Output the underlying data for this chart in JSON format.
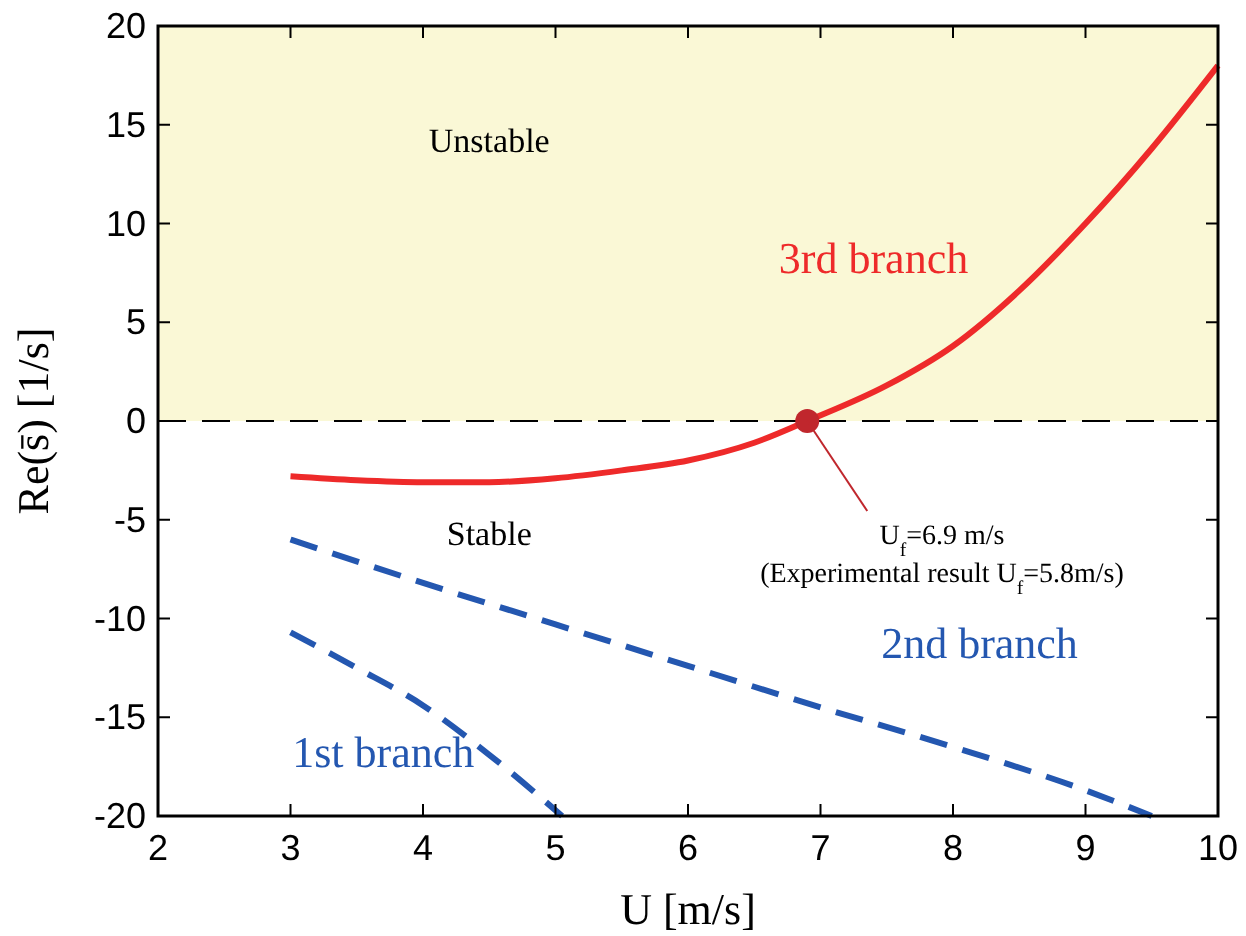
{
  "chart_data": {
    "type": "line",
    "xlabel": "U [m/s]",
    "ylabel": "Re(s̄) [1/s]",
    "xlim": [
      2,
      10
    ],
    "ylim": [
      -20,
      20
    ],
    "xticks": [
      2,
      3,
      4,
      5,
      6,
      7,
      8,
      9,
      10
    ],
    "yticks": [
      -20,
      -15,
      -10,
      -5,
      0,
      5,
      10,
      15,
      20
    ],
    "grid": false,
    "line_style": "solid",
    "marker": "none",
    "series": [
      {
        "name": "1st branch",
        "color": "#2457b0",
        "line_style": "dashed",
        "x": [
          3,
          3.5,
          4,
          4.5,
          5.05
        ],
        "values": [
          -10.7,
          -12.5,
          -14.4,
          -16.9,
          -20
        ]
      },
      {
        "name": "2nd branch",
        "color": "#2457b0",
        "line_style": "dashed",
        "x": [
          3,
          4,
          5,
          6,
          7,
          8,
          9,
          9.5
        ],
        "values": [
          -6,
          -8.2,
          -10.3,
          -12.4,
          -14.5,
          -16.5,
          -18.7,
          -20
        ]
      },
      {
        "name": "3rd branch",
        "color": "#ee2a2a",
        "x": [
          3,
          3.5,
          4,
          4.5,
          5,
          5.5,
          6,
          6.5,
          6.9,
          7.5,
          8,
          8.5,
          9,
          9.5,
          10
        ],
        "values": [
          -2.8,
          -3.0,
          -3.1,
          -3.1,
          -2.9,
          -2.5,
          -2.0,
          -1.1,
          0,
          1.8,
          3.8,
          6.6,
          10,
          13.8,
          18
        ]
      },
      {
        "type": "scatter",
        "marker": "circle",
        "color": "#c0272d",
        "x": [
          6.9
        ],
        "values": [
          0
        ]
      }
    ],
    "bands": [
      {
        "axis": "y",
        "from": 0,
        "to": 20,
        "label": "Unstable",
        "color": "#faf8d6"
      }
    ],
    "ref_lines": [
      {
        "axis": "y",
        "value": 0,
        "color": "#000000",
        "line_style": "dashed"
      }
    ],
    "annotations": [
      "Stable",
      {
        "text": "U$_{f}$=6.9 m/s",
        "x": 6.9,
        "y": 0
      },
      "(Experimental result U$_{f}$=5.8m/s)"
    ]
  }
}
